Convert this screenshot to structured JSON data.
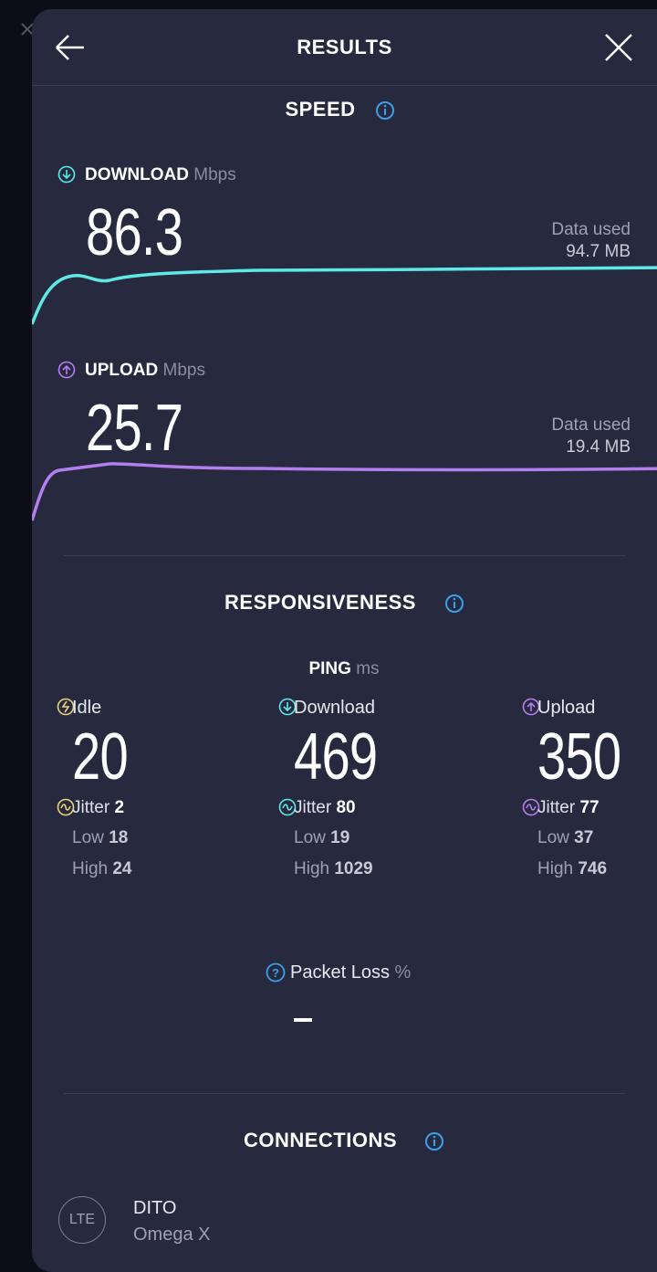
{
  "header": {
    "title": "RESULTS"
  },
  "speed": {
    "title": "SPEED",
    "download": {
      "label": "DOWNLOAD",
      "unit": "Mbps",
      "value": "86.3",
      "data_used_label": "Data used",
      "data_used": "94.7 MB"
    },
    "upload": {
      "label": "UPLOAD",
      "unit": "Mbps",
      "value": "25.7",
      "data_used_label": "Data used",
      "data_used": "19.4 MB"
    }
  },
  "responsiveness": {
    "title": "RESPONSIVENESS",
    "ping": {
      "label": "PING",
      "unit": "ms"
    },
    "columns": [
      {
        "label": "Idle",
        "value": "20",
        "jitter_label": "Jitter",
        "jitter": "2",
        "low_label": "Low",
        "low": "18",
        "high_label": "High",
        "high": "24"
      },
      {
        "label": "Download",
        "value": "469",
        "jitter_label": "Jitter",
        "jitter": "80",
        "low_label": "Low",
        "low": "19",
        "high_label": "High",
        "high": "1029"
      },
      {
        "label": "Upload",
        "value": "350",
        "jitter_label": "Jitter",
        "jitter": "77",
        "low_label": "Low",
        "low": "37",
        "high_label": "High",
        "high": "746"
      }
    ],
    "packet_loss": {
      "label": "Packet Loss",
      "unit": "%"
    }
  },
  "connections": {
    "title": "CONNECTIONS",
    "badge": "LTE",
    "provider": "DITO",
    "server": "Omega X"
  }
}
